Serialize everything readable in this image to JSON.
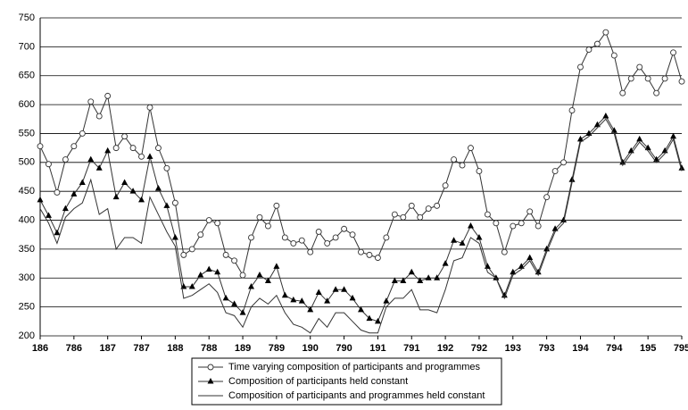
{
  "chart_data": {
    "type": "line",
    "categories": [
      "186",
      null,
      null,
      null,
      "786",
      null,
      null,
      null,
      "187",
      null,
      null,
      null,
      "787",
      null,
      null,
      null,
      "188",
      null,
      null,
      null,
      "788",
      null,
      null,
      null,
      "189",
      null,
      null,
      null,
      "789",
      null,
      null,
      null,
      "190",
      null,
      null,
      null,
      "790",
      null,
      null,
      null,
      "191",
      null,
      null,
      null,
      "791",
      null,
      null,
      null,
      "192",
      null,
      null,
      null,
      "792",
      null,
      null,
      null,
      "193",
      null,
      null,
      null,
      "793",
      null,
      null,
      null,
      "194",
      null,
      null,
      null,
      "794",
      null,
      null,
      null,
      "195",
      null,
      null,
      null,
      "795"
    ],
    "series": [
      {
        "name": "Time varying composition of participants and programmes",
        "color": "#333333",
        "marker": "circle",
        "values": [
          528,
          497,
          448,
          505,
          528,
          550,
          605,
          580,
          615,
          525,
          545,
          525,
          510,
          595,
          525,
          490,
          430,
          340,
          350,
          375,
          400,
          395,
          340,
          330,
          305,
          370,
          405,
          390,
          425,
          370,
          360,
          365,
          345,
          380,
          360,
          370,
          385,
          375,
          345,
          340,
          335,
          370,
          410,
          405,
          425,
          405,
          420,
          425,
          460,
          505,
          495,
          525,
          485,
          410,
          395,
          345,
          390,
          395,
          415,
          390,
          440,
          485,
          500,
          590,
          665,
          695,
          705,
          725,
          685,
          620,
          645,
          665,
          645,
          620,
          645,
          690,
          640
        ]
      },
      {
        "name": "Composition of participants held constant",
        "color": "#333333",
        "marker": "triangle",
        "values": [
          435,
          408,
          378,
          420,
          445,
          465,
          505,
          490,
          520,
          440,
          465,
          450,
          435,
          510,
          455,
          425,
          370,
          285,
          285,
          305,
          315,
          310,
          265,
          255,
          240,
          285,
          305,
          295,
          320,
          270,
          262,
          260,
          245,
          275,
          260,
          280,
          280,
          265,
          245,
          230,
          225,
          260,
          295,
          295,
          310,
          295,
          300,
          300,
          325,
          365,
          360,
          390,
          370,
          320,
          300,
          270,
          310,
          320,
          335,
          310,
          350,
          385,
          400,
          470,
          540,
          550,
          565,
          580,
          555,
          500,
          520,
          540,
          525,
          505,
          520,
          545,
          490
        ]
      },
      {
        "name": "Composition of participants and programmes held constant",
        "color": "#333333",
        "marker": "none",
        "values": [
          420,
          395,
          360,
          405,
          420,
          430,
          470,
          410,
          420,
          350,
          370,
          370,
          360,
          440,
          410,
          380,
          355,
          265,
          270,
          280,
          290,
          275,
          240,
          235,
          215,
          250,
          265,
          255,
          270,
          240,
          220,
          215,
          205,
          230,
          215,
          240,
          240,
          225,
          210,
          205,
          205,
          250,
          265,
          265,
          280,
          245,
          245,
          240,
          280,
          330,
          335,
          370,
          360,
          310,
          300,
          265,
          305,
          315,
          330,
          305,
          345,
          380,
          395,
          465,
          535,
          545,
          560,
          575,
          550,
          495,
          515,
          535,
          520,
          500,
          515,
          540,
          485
        ]
      }
    ],
    "ylim": [
      200,
      750
    ],
    "yticks": [
      200,
      250,
      300,
      350,
      400,
      450,
      500,
      550,
      600,
      650,
      700,
      750
    ],
    "grid": true
  }
}
